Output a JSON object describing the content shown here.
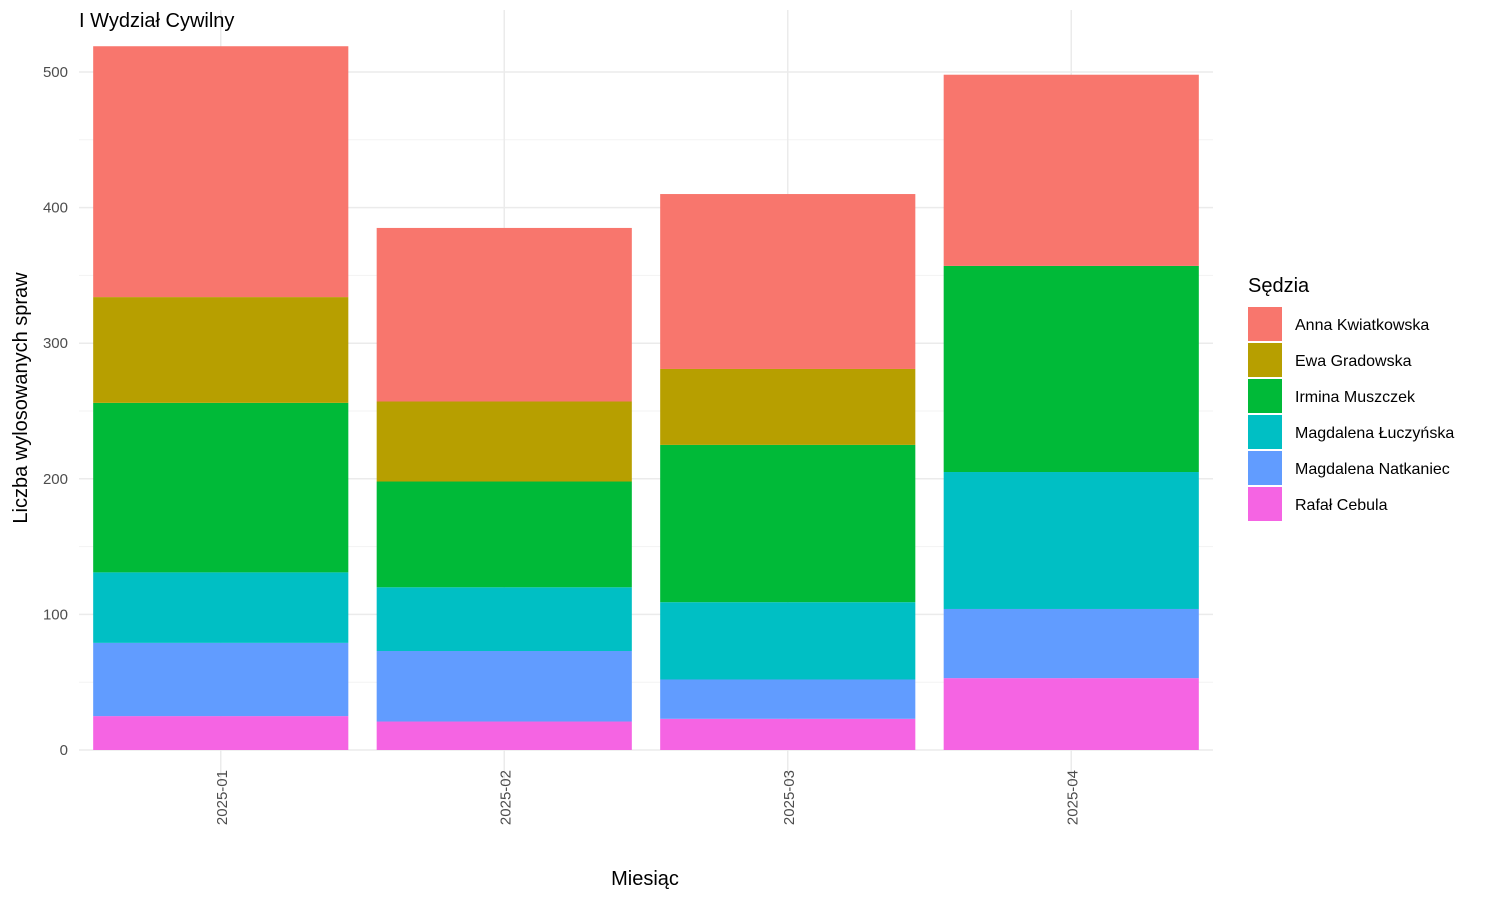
{
  "chart_data": {
    "type": "bar",
    "stacked": true,
    "title": "I Wydział Cywilny",
    "xlabel": "Miesiąc",
    "ylabel": "Liczba wylosowanych spraw",
    "ylim": [
      0,
      525
    ],
    "yticks": [
      0,
      100,
      200,
      300,
      400,
      500
    ],
    "grid": true,
    "legend_title": "Sędzia",
    "legend_position": "right",
    "categories": [
      "2025-01",
      "2025-02",
      "2025-03",
      "2025-04"
    ],
    "series": [
      {
        "name": "Anna Kwiatkowska",
        "color": "#F8766D",
        "values": [
          185,
          128,
          129,
          141
        ]
      },
      {
        "name": "Ewa Gradowska",
        "color": "#B79F00",
        "values": [
          78,
          59,
          56,
          0
        ]
      },
      {
        "name": "Irmina Muszczek",
        "color": "#00BA38",
        "values": [
          125,
          78,
          116,
          152
        ]
      },
      {
        "name": "Magdalena Łuczyńska",
        "color": "#00BFC4",
        "values": [
          52,
          47,
          57,
          101
        ]
      },
      {
        "name": "Magdalena Natkaniec",
        "color": "#619CFF",
        "values": [
          54,
          52,
          29,
          51
        ]
      },
      {
        "name": "Rafał Cebula",
        "color": "#F564E3",
        "values": [
          25,
          21,
          23,
          53
        ]
      }
    ]
  }
}
